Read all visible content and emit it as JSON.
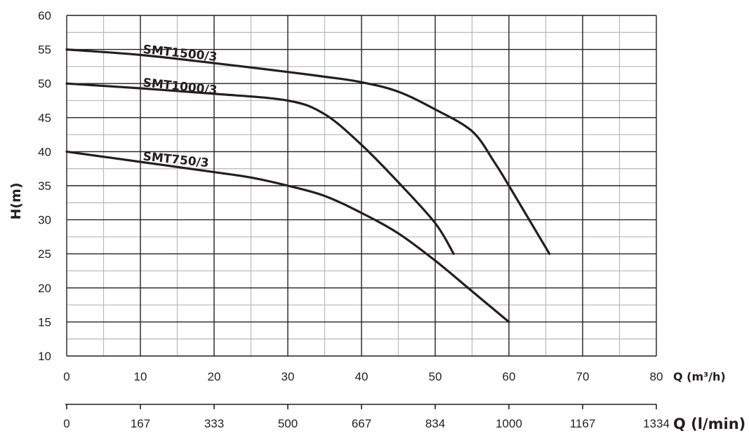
{
  "chart_data": {
    "type": "line",
    "ylabel": "H(m)",
    "xlabel": "Q (m³/h)",
    "x2label": "Q (l/min)",
    "xlim": [
      0,
      80
    ],
    "ylim": [
      10,
      60
    ],
    "x_ticks": [
      "0",
      "10",
      "20",
      "30",
      "40",
      "50",
      "60",
      "70",
      "80"
    ],
    "x2_ticks": [
      "0",
      "167",
      "333",
      "500",
      "667",
      "834",
      "1000",
      "1167",
      "1334"
    ],
    "y_ticks": [
      "10",
      "15",
      "20",
      "25",
      "30",
      "35",
      "40",
      "45",
      "50",
      "55",
      "60"
    ],
    "grid": true,
    "series": [
      {
        "name": "SMT1500/3",
        "x": [
          0,
          10,
          20,
          30,
          35,
          40,
          45,
          50,
          55,
          58,
          60,
          65.5
        ],
        "y": [
          55,
          54.2,
          53,
          51.7,
          51,
          50.2,
          48.8,
          46.2,
          43,
          38.5,
          35,
          25
        ]
      },
      {
        "name": "SMT1000/3",
        "x": [
          0,
          10,
          20,
          30,
          35,
          40,
          45,
          50,
          52.5
        ],
        "y": [
          50,
          49.3,
          48.5,
          47.5,
          45.5,
          41,
          35.5,
          29.5,
          25
        ]
      },
      {
        "name": "SMT750/3",
        "x": [
          0,
          10,
          20,
          25,
          30,
          35,
          40,
          45,
          50,
          55,
          60
        ],
        "y": [
          40,
          38.5,
          37,
          36.2,
          35,
          33.5,
          31,
          28,
          24,
          19.5,
          15
        ]
      }
    ]
  }
}
